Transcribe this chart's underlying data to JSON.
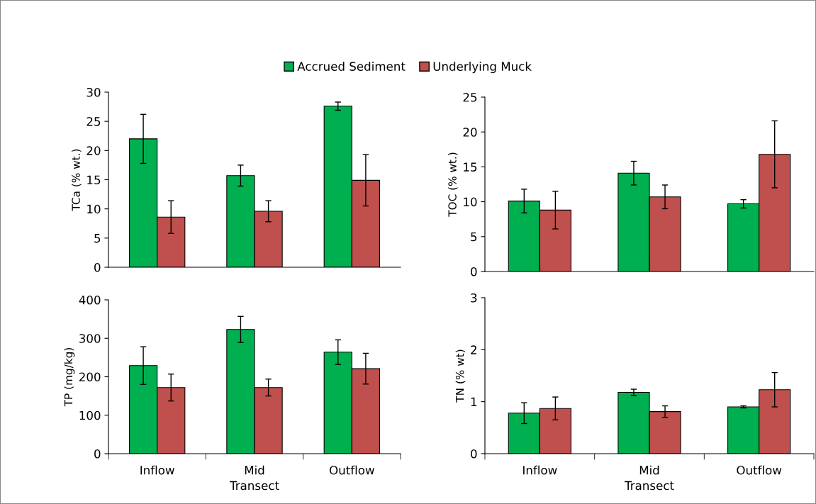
{
  "chart_data": [
    {
      "type": "bar",
      "ylabel": "TCa (% wt.)",
      "categories": [
        null,
        null,
        null
      ],
      "ylim": [
        0,
        30
      ],
      "yticks": [
        0,
        5,
        10,
        15,
        20,
        25,
        30
      ],
      "tick_labels": "y",
      "legend": "top",
      "grid": false,
      "series": [
        {
          "name": "Accrued Sediment",
          "color": "#00b050",
          "values": [
            22.0,
            15.7,
            27.6
          ],
          "errors": [
            4.2,
            1.8,
            0.7
          ]
        },
        {
          "name": "Underlying Muck",
          "color": "#c0504d",
          "values": [
            8.6,
            9.6,
            14.9
          ],
          "errors": [
            2.8,
            1.8,
            4.4
          ]
        }
      ]
    },
    {
      "type": "bar",
      "ylabel": "TOC (% wt.)",
      "categories": [
        null,
        null,
        null
      ],
      "ylim": [
        0,
        25
      ],
      "yticks": [
        0,
        5,
        10,
        15,
        20,
        25
      ],
      "tick_labels": "y",
      "grid": false,
      "series": [
        {
          "color": "#00b050",
          "values": [
            10.1,
            14.1,
            9.7
          ],
          "errors": [
            1.7,
            1.7,
            0.6
          ]
        },
        {
          "color": "#c0504d",
          "values": [
            8.8,
            10.7,
            16.8
          ],
          "errors": [
            2.7,
            1.7,
            4.8
          ]
        }
      ]
    },
    {
      "type": "bar",
      "ylabel": "TP (mg/kg)",
      "xlabel": "Transect",
      "categories": [
        "Inflow",
        "Mid",
        "Outflow"
      ],
      "ylim": [
        0,
        400
      ],
      "yticks": [
        0,
        100,
        200,
        300,
        400
      ],
      "grid": false,
      "series": [
        {
          "color": "#00b050",
          "values": [
            229,
            323,
            264
          ],
          "errors": [
            49,
            34,
            32
          ]
        },
        {
          "color": "#c0504d",
          "values": [
            172,
            172,
            221
          ],
          "errors": [
            35,
            22,
            40
          ]
        }
      ]
    },
    {
      "type": "bar",
      "ylabel": "TN (% wt)",
      "xlabel": "Transect",
      "categories": [
        "Inflow",
        "Mid",
        "Outflow"
      ],
      "ylim": [
        0,
        3
      ],
      "yticks": [
        0,
        1,
        2,
        3
      ],
      "grid": false,
      "series": [
        {
          "color": "#00b050",
          "values": [
            0.78,
            1.18,
            0.9
          ],
          "errors": [
            0.2,
            0.06,
            0.02
          ]
        },
        {
          "color": "#c0504d",
          "values": [
            0.87,
            0.81,
            1.23
          ],
          "errors": [
            0.22,
            0.11,
            0.33
          ]
        }
      ]
    }
  ]
}
